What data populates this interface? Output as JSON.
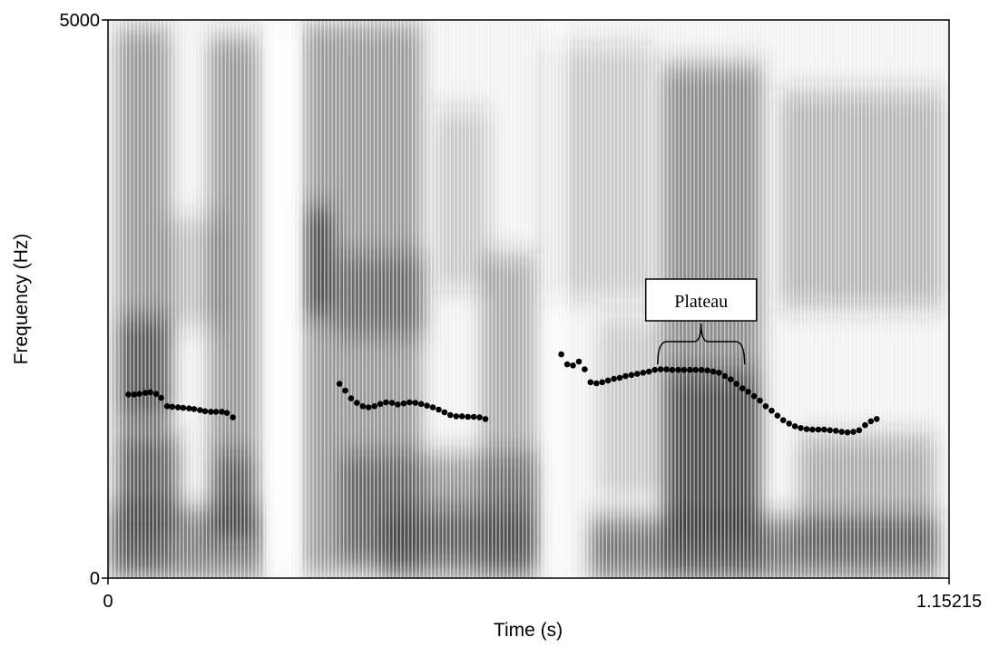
{
  "chart_data": {
    "type": "scatter",
    "subtype": "spectrogram-with-pitch-track",
    "xlabel": "Time (s)",
    "ylabel": "Frequency (Hz)",
    "xlim": [
      0,
      1.15215
    ],
    "ylim": [
      0,
      5000
    ],
    "x_tick_labels": [
      "0",
      "1.15215"
    ],
    "y_tick_labels": [
      "0",
      "5000"
    ],
    "grid": false,
    "colors": {
      "pitch_points": "#000000",
      "spectrogram_dark": "#1a1a1a",
      "spectrogram_light": "#ffffff"
    },
    "annotations": [
      {
        "text": "Plateau",
        "x_start": 0.753,
        "x_end": 0.872
      }
    ],
    "series": [
      {
        "points": [
          [
            0.028,
            1645
          ],
          [
            0.036,
            1645
          ],
          [
            0.043,
            1650
          ],
          [
            0.051,
            1660
          ],
          [
            0.058,
            1665
          ],
          [
            0.066,
            1650
          ],
          [
            0.073,
            1615
          ],
          [
            0.081,
            1540
          ],
          [
            0.088,
            1535
          ],
          [
            0.096,
            1530
          ],
          [
            0.103,
            1525
          ],
          [
            0.111,
            1520
          ],
          [
            0.118,
            1515
          ],
          [
            0.126,
            1505
          ],
          [
            0.133,
            1495
          ],
          [
            0.141,
            1490
          ],
          [
            0.148,
            1490
          ],
          [
            0.156,
            1490
          ],
          [
            0.163,
            1480
          ],
          [
            0.171,
            1440
          ],
          [
            0.317,
            1740
          ],
          [
            0.325,
            1680
          ],
          [
            0.333,
            1610
          ],
          [
            0.341,
            1570
          ],
          [
            0.349,
            1540
          ],
          [
            0.357,
            1530
          ],
          [
            0.365,
            1540
          ],
          [
            0.373,
            1560
          ],
          [
            0.381,
            1575
          ],
          [
            0.389,
            1570
          ],
          [
            0.397,
            1555
          ],
          [
            0.405,
            1565
          ],
          [
            0.413,
            1575
          ],
          [
            0.421,
            1570
          ],
          [
            0.429,
            1560
          ],
          [
            0.437,
            1545
          ],
          [
            0.445,
            1530
          ],
          [
            0.453,
            1510
          ],
          [
            0.461,
            1485
          ],
          [
            0.469,
            1460
          ],
          [
            0.477,
            1450
          ],
          [
            0.485,
            1450
          ],
          [
            0.493,
            1445
          ],
          [
            0.501,
            1445
          ],
          [
            0.509,
            1440
          ],
          [
            0.517,
            1425
          ],
          [
            0.621,
            2005
          ],
          [
            0.629,
            1915
          ],
          [
            0.637,
            1905
          ],
          [
            0.645,
            1940
          ],
          [
            0.653,
            1870
          ],
          [
            0.661,
            1755
          ],
          [
            0.669,
            1745
          ],
          [
            0.677,
            1755
          ],
          [
            0.685,
            1770
          ],
          [
            0.693,
            1785
          ],
          [
            0.701,
            1795
          ],
          [
            0.709,
            1810
          ],
          [
            0.717,
            1820
          ],
          [
            0.725,
            1830
          ],
          [
            0.733,
            1840
          ],
          [
            0.741,
            1850
          ],
          [
            0.749,
            1865
          ],
          [
            0.757,
            1870
          ],
          [
            0.765,
            1870
          ],
          [
            0.773,
            1865
          ],
          [
            0.781,
            1865
          ],
          [
            0.789,
            1865
          ],
          [
            0.797,
            1865
          ],
          [
            0.805,
            1865
          ],
          [
            0.813,
            1865
          ],
          [
            0.821,
            1860
          ],
          [
            0.829,
            1850
          ],
          [
            0.837,
            1840
          ],
          [
            0.845,
            1810
          ],
          [
            0.853,
            1780
          ],
          [
            0.861,
            1740
          ],
          [
            0.869,
            1700
          ],
          [
            0.877,
            1670
          ],
          [
            0.885,
            1630
          ],
          [
            0.893,
            1590
          ],
          [
            0.901,
            1540
          ],
          [
            0.909,
            1500
          ],
          [
            0.917,
            1455
          ],
          [
            0.925,
            1415
          ],
          [
            0.933,
            1385
          ],
          [
            0.941,
            1360
          ],
          [
            0.949,
            1345
          ],
          [
            0.957,
            1335
          ],
          [
            0.965,
            1330
          ],
          [
            0.973,
            1330
          ],
          [
            0.981,
            1330
          ],
          [
            0.989,
            1325
          ],
          [
            0.997,
            1320
          ],
          [
            1.005,
            1310
          ],
          [
            1.013,
            1305
          ],
          [
            1.021,
            1310
          ],
          [
            1.029,
            1325
          ],
          [
            1.037,
            1370
          ],
          [
            1.045,
            1405
          ],
          [
            1.053,
            1425
          ]
        ]
      }
    ]
  }
}
